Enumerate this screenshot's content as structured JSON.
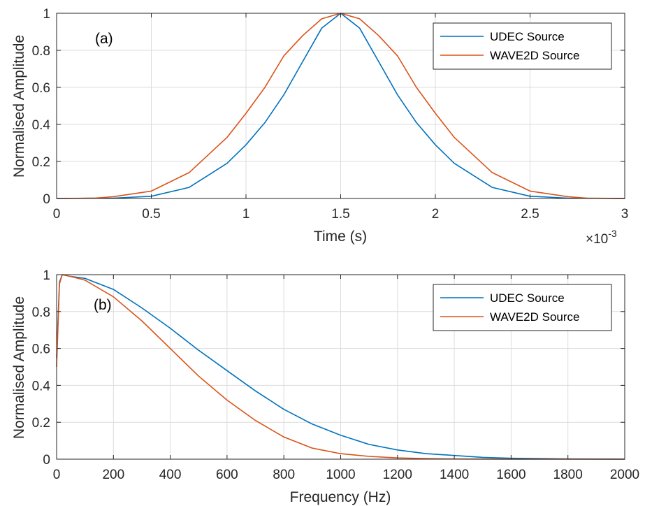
{
  "chart_data": [
    {
      "type": "line",
      "annotation": "(a)",
      "xlabel": "Time (s)",
      "ylabel": "Normalised Amplitude",
      "x_exponent_label": "×10",
      "x_exponent_power": "-3",
      "xlim": [
        0,
        0.003
      ],
      "ylim": [
        0,
        1
      ],
      "xtick_values": [
        0,
        0.0005,
        0.001,
        0.0015,
        0.002,
        0.0025,
        0.003
      ],
      "xtick_labels": [
        "0",
        "0.5",
        "1",
        "1.5",
        "2",
        "2.5",
        "3"
      ],
      "ytick_values": [
        0,
        0.2,
        0.4,
        0.6,
        0.8,
        1
      ],
      "ytick_labels": [
        "0",
        "0.2",
        "0.4",
        "0.6",
        "0.8",
        "1"
      ],
      "grid": true,
      "legend": "top-right",
      "series": [
        {
          "name": "UDEC Source",
          "color": "#0072BD",
          "x": [
            0,
            0.0003,
            0.0005,
            0.0007,
            0.0009,
            0.001,
            0.0011,
            0.0012,
            0.0013,
            0.0014,
            0.0015,
            0.0016,
            0.0017,
            0.0018,
            0.0019,
            0.002,
            0.0021,
            0.0023,
            0.0025,
            0.0027,
            0.003
          ],
          "y": [
            0,
            0.002,
            0.012,
            0.06,
            0.19,
            0.29,
            0.41,
            0.56,
            0.74,
            0.92,
            1.0,
            0.92,
            0.74,
            0.56,
            0.41,
            0.29,
            0.19,
            0.06,
            0.012,
            0.002,
            0
          ]
        },
        {
          "name": "WAVE2D Source",
          "color": "#D95319",
          "x": [
            0,
            0.0002,
            0.0003,
            0.0005,
            0.0007,
            0.0009,
            0.001,
            0.0011,
            0.0012,
            0.0013,
            0.0014,
            0.0015,
            0.0016,
            0.0017,
            0.0018,
            0.0019,
            0.002,
            0.0021,
            0.0023,
            0.0025,
            0.0027,
            0.0028,
            0.003
          ],
          "y": [
            0,
            0.002,
            0.01,
            0.04,
            0.14,
            0.33,
            0.46,
            0.6,
            0.77,
            0.88,
            0.97,
            1.0,
            0.97,
            0.88,
            0.77,
            0.6,
            0.46,
            0.33,
            0.14,
            0.04,
            0.01,
            0.002,
            0
          ]
        }
      ]
    },
    {
      "type": "line",
      "annotation": "(b)",
      "xlabel": "Frequency (Hz)",
      "ylabel": "Normalised Amplitude",
      "xlim": [
        0,
        2000
      ],
      "ylim": [
        0,
        1
      ],
      "xtick_values": [
        0,
        200,
        400,
        600,
        800,
        1000,
        1200,
        1400,
        1600,
        1800,
        2000
      ],
      "xtick_labels": [
        "0",
        "200",
        "400",
        "600",
        "800",
        "1000",
        "1200",
        "1400",
        "1600",
        "1800",
        "2000"
      ],
      "ytick_values": [
        0,
        0.2,
        0.4,
        0.6,
        0.8,
        1
      ],
      "ytick_labels": [
        "0",
        "0.2",
        "0.4",
        "0.6",
        "0.8",
        "1"
      ],
      "grid": true,
      "legend": "top-right",
      "series": [
        {
          "name": "UDEC Source",
          "color": "#0072BD",
          "x": [
            0,
            10,
            20,
            50,
            100,
            200,
            300,
            400,
            500,
            600,
            700,
            800,
            900,
            1000,
            1100,
            1200,
            1300,
            1400,
            1500,
            1600,
            1700,
            1800,
            2000
          ],
          "y": [
            0.55,
            0.96,
            1.0,
            0.99,
            0.98,
            0.92,
            0.82,
            0.71,
            0.59,
            0.48,
            0.37,
            0.27,
            0.19,
            0.13,
            0.08,
            0.05,
            0.03,
            0.02,
            0.01,
            0.005,
            0.003,
            0.001,
            0
          ]
        },
        {
          "name": "WAVE2D Source",
          "color": "#D95319",
          "x": [
            0,
            10,
            20,
            50,
            100,
            200,
            300,
            400,
            500,
            600,
            700,
            800,
            900,
            1000,
            1100,
            1200,
            1300,
            1400,
            1600,
            1800,
            2000
          ],
          "y": [
            0.5,
            0.95,
            1.0,
            0.99,
            0.97,
            0.88,
            0.75,
            0.6,
            0.45,
            0.32,
            0.21,
            0.12,
            0.06,
            0.03,
            0.015,
            0.007,
            0.003,
            0.001,
            0,
            0,
            0
          ]
        }
      ]
    }
  ]
}
